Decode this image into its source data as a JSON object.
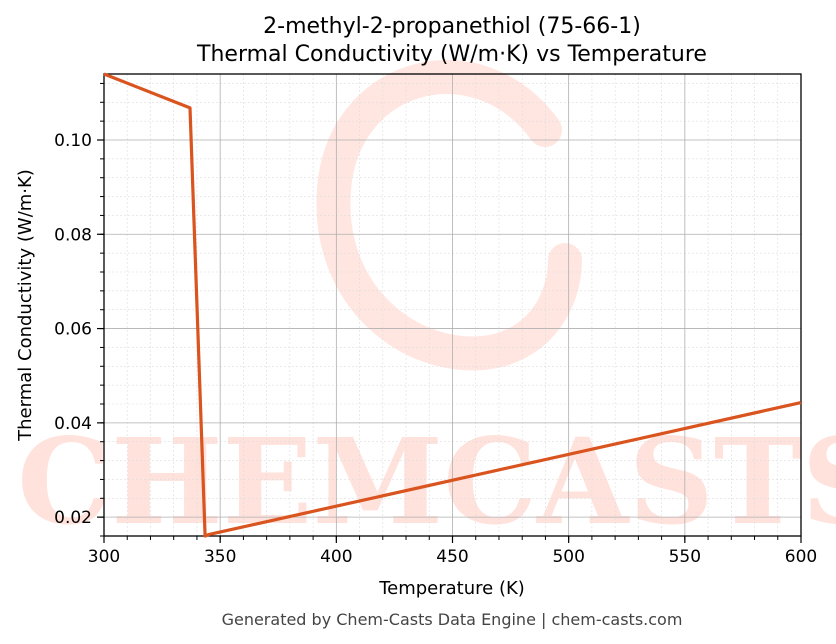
{
  "chart_data": {
    "type": "line",
    "title": "2-methyl-2-propanethiol (75-66-1)",
    "subtitle": "Thermal Conductivity (W/m·K) vs Temperature",
    "xlabel": "Temperature (K)",
    "ylabel": "Thermal Conductivity (W/m·K)",
    "xlim": [
      300,
      600
    ],
    "ylim": [
      0.016,
      0.114
    ],
    "xticks": [
      300,
      350,
      400,
      450,
      500,
      550,
      600
    ],
    "yticks": [
      0.02,
      0.04,
      0.06,
      0.08,
      0.1
    ],
    "grid": true,
    "series": [
      {
        "color": "#d9541e",
        "x": [
          300,
          337,
          343.5,
          345,
          600
        ],
        "y": [
          0.114,
          0.1068,
          0.016,
          0.0163,
          0.0443
        ]
      }
    ]
  },
  "watermark": {
    "text": "CHEMCASTS",
    "color": "#ffe2dc"
  },
  "footer": "Generated by Chem-Casts Data Engine | chem-casts.com"
}
